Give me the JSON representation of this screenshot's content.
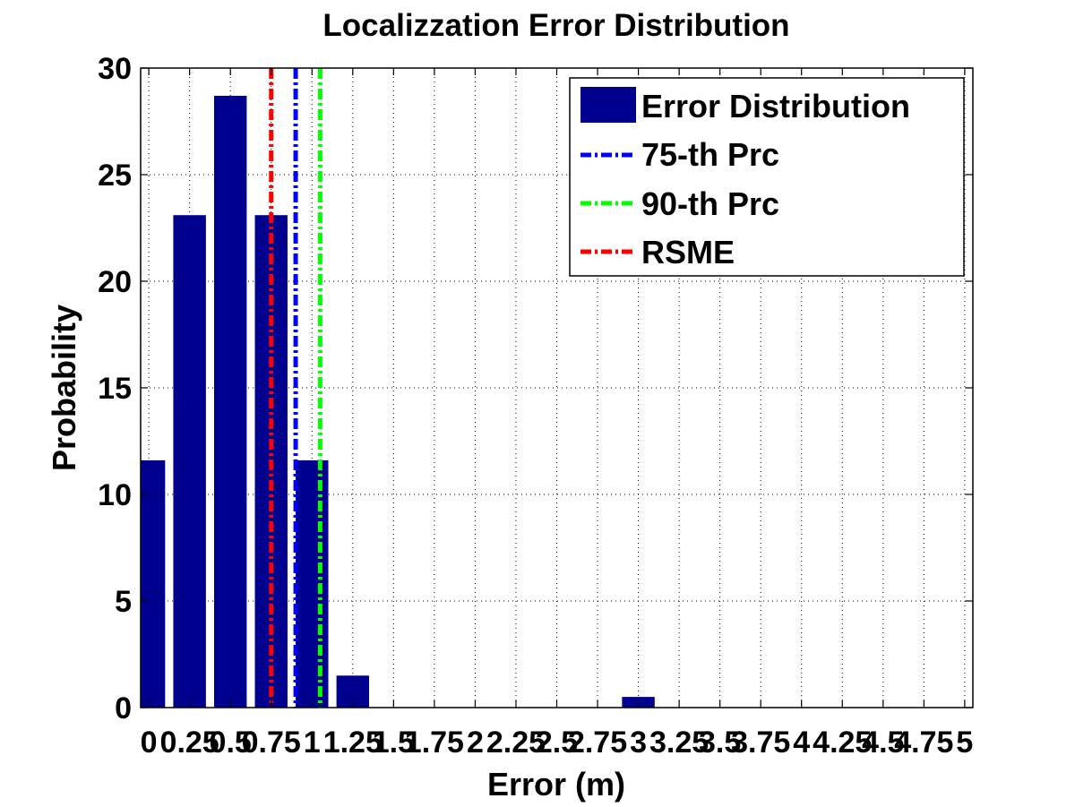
{
  "chart_data": {
    "type": "bar",
    "title": "Localizzation Error Distribution",
    "xlabel": "Error (m)",
    "ylabel": "Probability",
    "xlim": [
      -0.05,
      5.05
    ],
    "ylim": [
      0,
      30
    ],
    "grid": true,
    "legend_position": "top-right",
    "x_ticks": [
      0,
      0.25,
      0.5,
      0.75,
      1,
      1.25,
      1.5,
      1.75,
      2,
      2.25,
      2.5,
      2.75,
      3,
      3.25,
      3.5,
      3.75,
      4,
      4.25,
      4.5,
      4.75,
      5
    ],
    "x_tick_labels": [
      "0",
      "0.25",
      "0.5",
      "0.75",
      "1",
      "1.25",
      "1.5",
      "1.75",
      "2",
      "2.25",
      "2.5",
      "2.75",
      "3",
      "3.25",
      "3.5",
      "3.75",
      "4",
      "4.25",
      "4.5",
      "4.75",
      "5"
    ],
    "y_ticks": [
      0,
      5,
      10,
      15,
      20,
      25,
      30
    ],
    "y_tick_labels": [
      "0",
      "5",
      "10",
      "15",
      "20",
      "25",
      "30"
    ],
    "series": [
      {
        "name": "Error Distribution",
        "color": "#00008f",
        "x": [
          0,
          0.25,
          0.5,
          0.75,
          1,
          1.25,
          1.5,
          1.75,
          2,
          2.25,
          2.5,
          2.75,
          3,
          3.25,
          3.5,
          3.75,
          4,
          4.25,
          4.5,
          4.75,
          5
        ],
        "values": [
          11.6,
          23.1,
          28.7,
          23.1,
          11.6,
          1.5,
          0,
          0,
          0,
          0,
          0,
          0,
          0.5,
          0,
          0,
          0,
          0,
          0,
          0,
          0,
          0
        ]
      }
    ],
    "reference_lines": [
      {
        "name": "75-th Prc",
        "x": 0.9,
        "color": "#0000ff"
      },
      {
        "name": "90-th Prc",
        "x": 1.05,
        "color": "#00ff00"
      },
      {
        "name": "RSME",
        "x": 0.75,
        "color": "#ff0000"
      }
    ]
  }
}
